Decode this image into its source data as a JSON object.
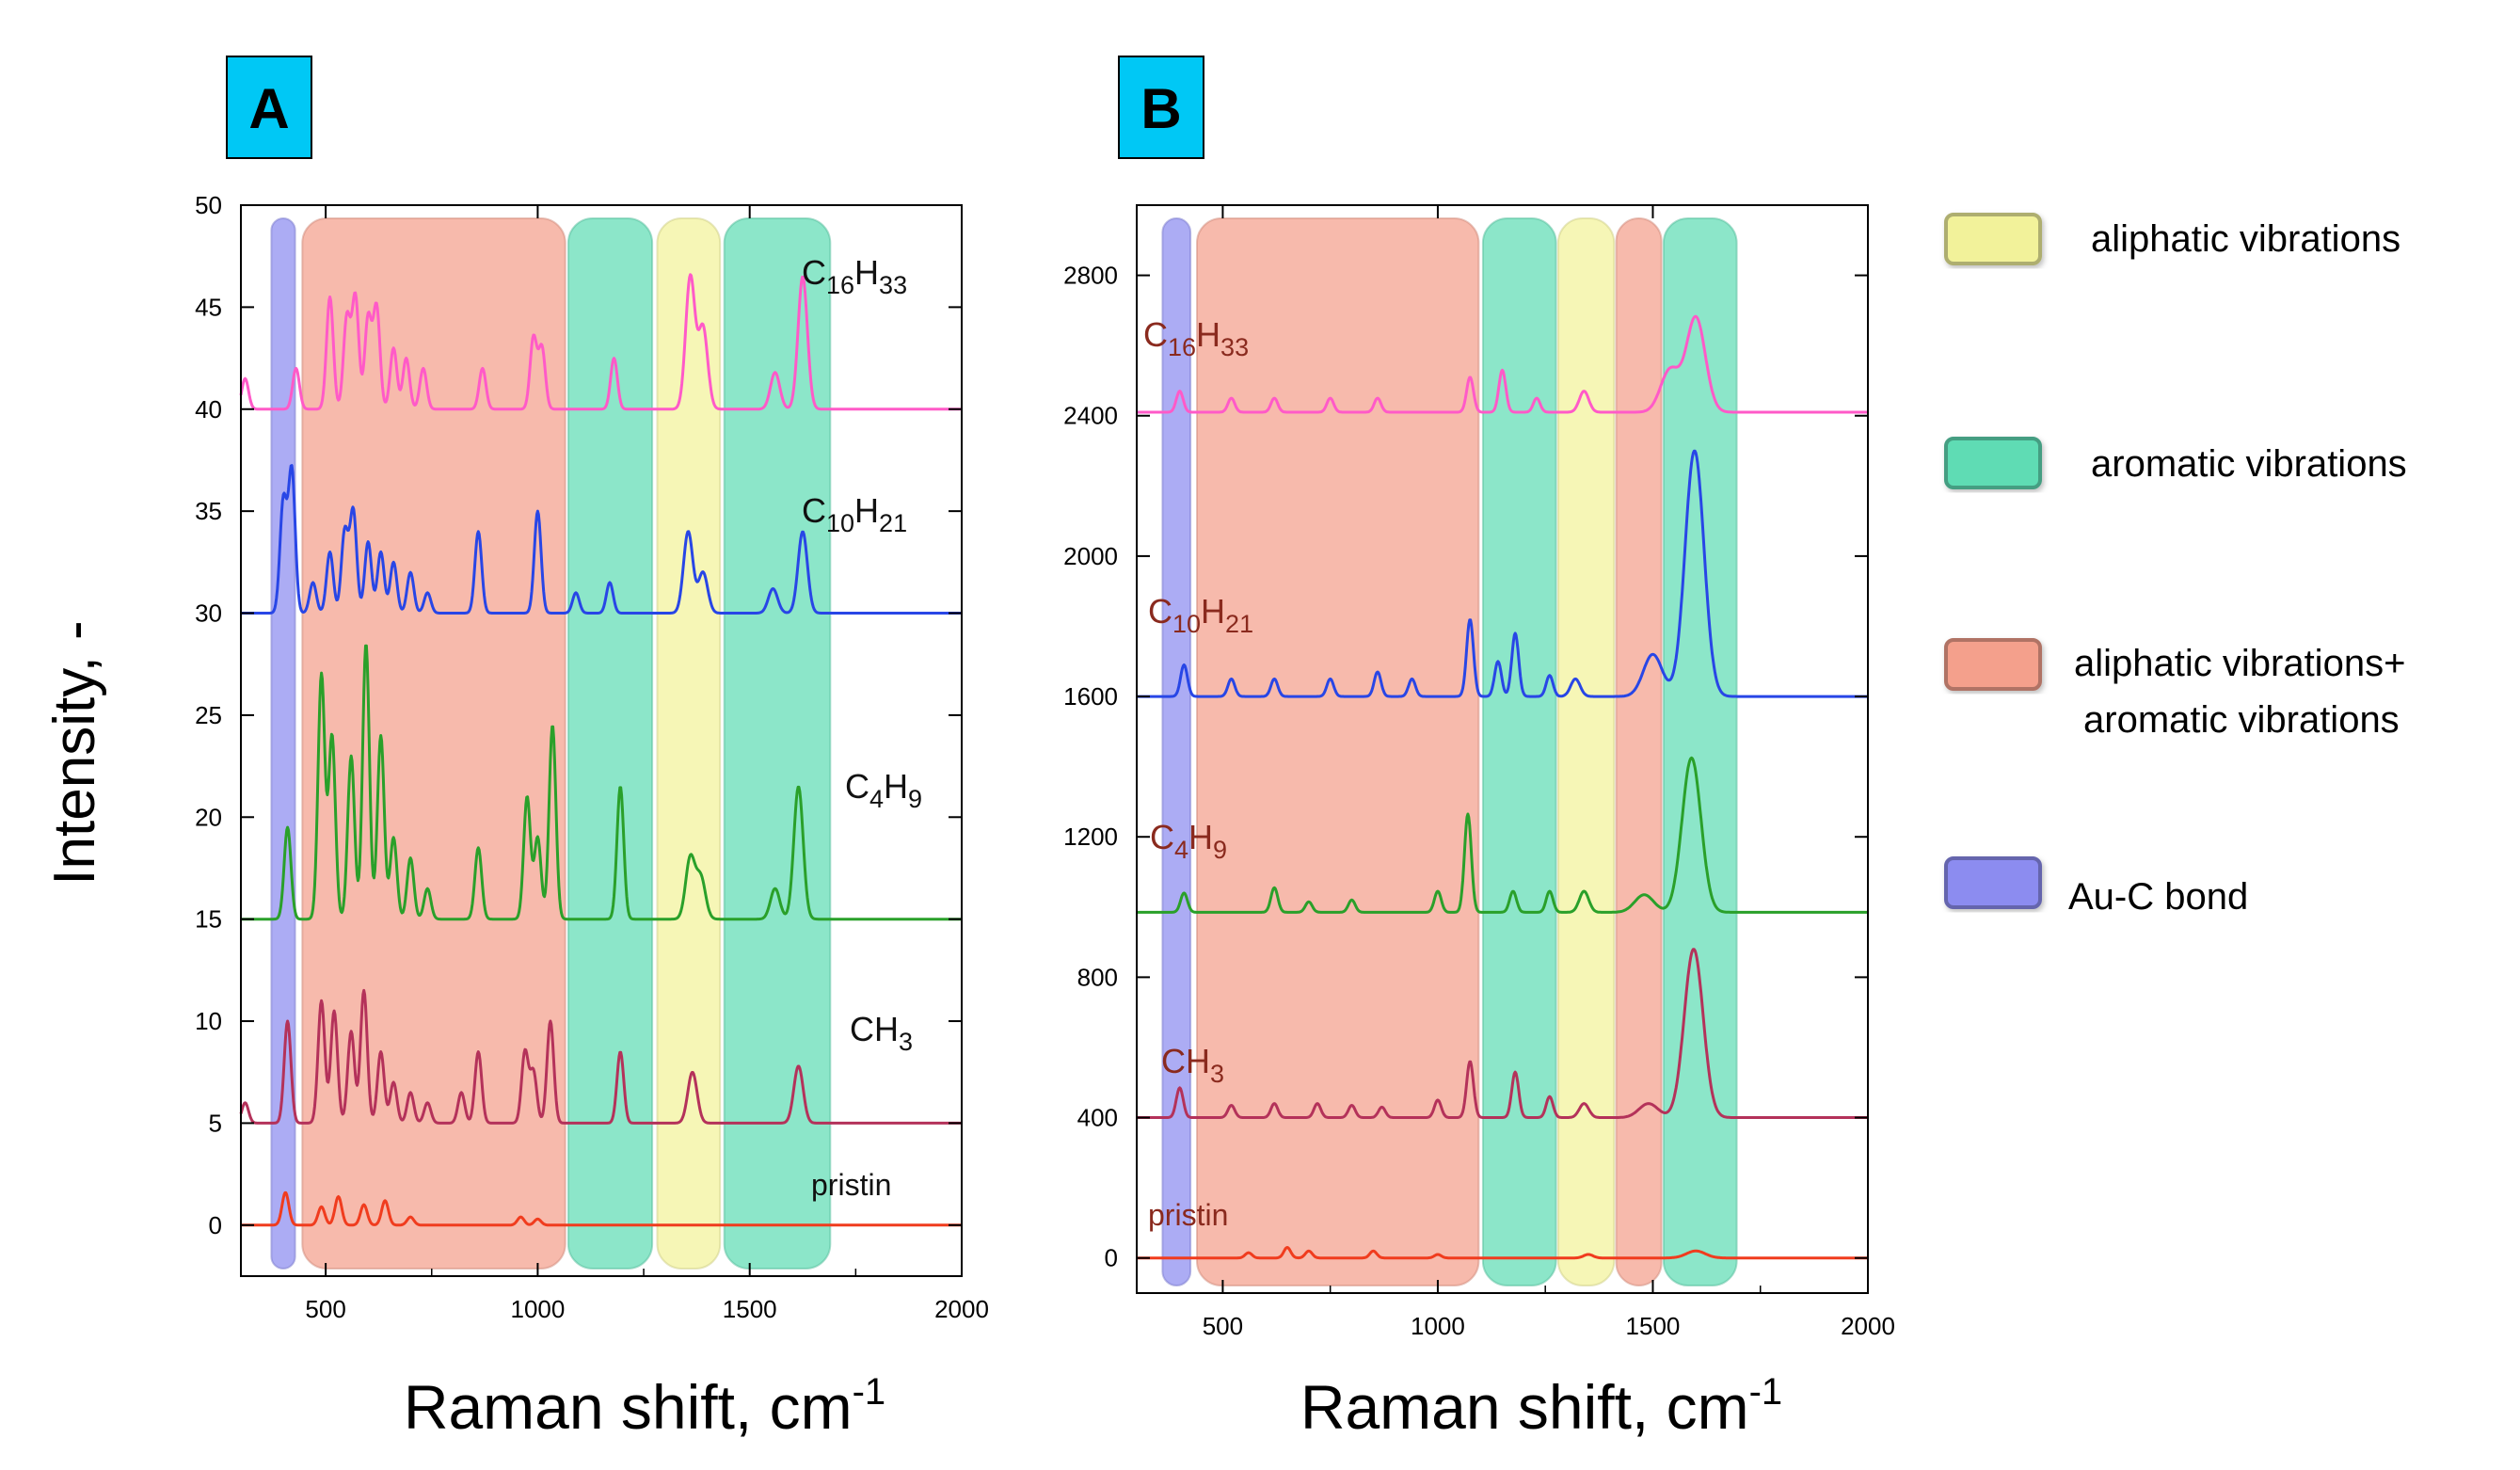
{
  "panel_labels": {
    "a": "A",
    "b": "B"
  },
  "colors": {
    "panel_label_fill": "#00c8f5",
    "band_au_c": "#8c8cf0",
    "band_mixed": "#f4a08c",
    "band_aromatic": "#5fdcb4",
    "band_aliphatic": "#f2f29a",
    "series": {
      "pristin": "#f03c1e",
      "CH3": "#b4325a",
      "C4H9": "#2aa02a",
      "C10H21": "#2846e6",
      "C16H33": "#ff5ac8"
    }
  },
  "axis_titles": {
    "y": "Intensity, -",
    "x": {
      "base": "Raman shift, cm",
      "sup": "-1"
    }
  },
  "legend": [
    {
      "id": "aliphatic",
      "color_key": "band_aliphatic",
      "lines": [
        "aliphatic vibrations"
      ]
    },
    {
      "id": "aromatic",
      "color_key": "band_aromatic",
      "lines": [
        "aromatic vibrations"
      ]
    },
    {
      "id": "mixed",
      "color_key": "band_mixed",
      "lines": [
        "aliphatic vibrations+",
        "aromatic vibrations"
      ]
    },
    {
      "id": "au_c",
      "color_key": "band_au_c",
      "lines": [
        "Au-C bond"
      ]
    }
  ],
  "series_labels": {
    "pristin": {
      "main": "pristin"
    },
    "CH3": {
      "main": "CH",
      "sub": "3"
    },
    "C4H9": {
      "main": "C",
      "sub": "4",
      "main2": "H",
      "sub2": "9"
    },
    "C10H21": {
      "main": "C",
      "sub": "10",
      "main2": "H",
      "sub2": "21"
    },
    "C16H33": {
      "main": "C",
      "sub": "16",
      "main2": "H",
      "sub2": "33"
    }
  },
  "chart_data": [
    {
      "panel": "A",
      "type": "line",
      "title": "",
      "xlabel": "Raman shift, cm-1",
      "ylabel": "Intensity, -",
      "xlim": [
        300,
        2000
      ],
      "ylim": [
        -2.5,
        50
      ],
      "xticks": [
        500,
        1000,
        1500,
        2000
      ],
      "yticks": [
        0,
        5,
        10,
        15,
        20,
        25,
        30,
        35,
        40,
        45,
        50
      ],
      "bands": [
        {
          "kind": "au_c",
          "x": [
            372,
            428
          ]
        },
        {
          "kind": "mixed",
          "x": [
            445,
            1065
          ]
        },
        {
          "kind": "aromatic",
          "x": [
            1072,
            1270
          ]
        },
        {
          "kind": "aliphatic",
          "x": [
            1282,
            1430
          ]
        },
        {
          "kind": "aromatic",
          "x": [
            1440,
            1690
          ]
        }
      ],
      "series": [
        {
          "key": "pristin",
          "baseline": 0,
          "peaks": [
            [
              405,
              1.6
            ],
            [
              490,
              0.9
            ],
            [
              530,
              1.4
            ],
            [
              590,
              1.0
            ],
            [
              640,
              1.2
            ],
            [
              700,
              0.4
            ],
            [
              960,
              0.4
            ],
            [
              1000,
              0.3
            ]
          ]
        },
        {
          "key": "CH3",
          "baseline": 5,
          "peaks": [
            [
              310,
              1.0
            ],
            [
              410,
              5.0
            ],
            [
              490,
              6.0
            ],
            [
              520,
              5.5
            ],
            [
              560,
              4.5
            ],
            [
              590,
              6.5
            ],
            [
              630,
              3.5
            ],
            [
              660,
              2.0
            ],
            [
              700,
              1.5
            ],
            [
              740,
              1.0
            ],
            [
              820,
              1.5
            ],
            [
              860,
              3.5
            ],
            [
              970,
              3.5
            ],
            [
              990,
              2.5
            ],
            [
              1030,
              5.0
            ],
            [
              1195,
              3.5
            ],
            [
              1365,
              2.5
            ],
            [
              1615,
              2.8
            ]
          ]
        },
        {
          "key": "C4H9",
          "baseline": 15,
          "peaks": [
            [
              410,
              4.5
            ],
            [
              490,
              12.0
            ],
            [
              515,
              9.0
            ],
            [
              560,
              8.0
            ],
            [
              595,
              13.5
            ],
            [
              630,
              9.0
            ],
            [
              660,
              4.0
            ],
            [
              700,
              3.0
            ],
            [
              740,
              1.5
            ],
            [
              860,
              3.5
            ],
            [
              975,
              6.0
            ],
            [
              1000,
              4.0
            ],
            [
              1035,
              9.5
            ],
            [
              1195,
              6.5
            ],
            [
              1360,
              3.0
            ],
            [
              1385,
              2.0
            ],
            [
              1560,
              1.5
            ],
            [
              1615,
              6.5
            ]
          ]
        },
        {
          "key": "C10H21",
          "baseline": 30,
          "peaks": [
            [
              400,
              5.5
            ],
            [
              420,
              7.0
            ],
            [
              470,
              1.5
            ],
            [
              510,
              3.0
            ],
            [
              545,
              4.0
            ],
            [
              565,
              5.0
            ],
            [
              600,
              3.5
            ],
            [
              630,
              3.0
            ],
            [
              660,
              2.5
            ],
            [
              700,
              2.0
            ],
            [
              740,
              1.0
            ],
            [
              860,
              4.0
            ],
            [
              1000,
              5.0
            ],
            [
              1090,
              1.0
            ],
            [
              1170,
              1.5
            ],
            [
              1355,
              4.0
            ],
            [
              1390,
              2.0
            ],
            [
              1555,
              1.2
            ],
            [
              1625,
              4.0
            ]
          ]
        },
        {
          "key": "C16H33",
          "baseline": 40,
          "peaks": [
            [
              310,
              1.5
            ],
            [
              430,
              2.0
            ],
            [
              510,
              5.5
            ],
            [
              550,
              4.5
            ],
            [
              570,
              5.5
            ],
            [
              600,
              4.5
            ],
            [
              620,
              5.0
            ],
            [
              660,
              3.0
            ],
            [
              690,
              2.5
            ],
            [
              730,
              2.0
            ],
            [
              870,
              2.0
            ],
            [
              990,
              3.5
            ],
            [
              1010,
              3.0
            ],
            [
              1180,
              2.5
            ],
            [
              1360,
              6.5
            ],
            [
              1390,
              4.0
            ],
            [
              1560,
              1.8
            ],
            [
              1625,
              6.5
            ]
          ]
        }
      ]
    },
    {
      "panel": "B",
      "type": "line",
      "title": "",
      "xlabel": "Raman shift, cm-1",
      "ylabel": "",
      "xlim": [
        300,
        2000
      ],
      "ylim": [
        -100,
        3000
      ],
      "xticks": [
        500,
        1000,
        1500,
        2000
      ],
      "yticks": [
        0,
        400,
        800,
        1200,
        1600,
        2000,
        2400,
        2800
      ],
      "bands": [
        {
          "kind": "au_c",
          "x": [
            360,
            425
          ]
        },
        {
          "kind": "mixed",
          "x": [
            440,
            1095
          ]
        },
        {
          "kind": "aromatic",
          "x": [
            1105,
            1275
          ]
        },
        {
          "kind": "aliphatic",
          "x": [
            1280,
            1410
          ]
        },
        {
          "kind": "mixed",
          "x": [
            1415,
            1520
          ]
        },
        {
          "kind": "aromatic",
          "x": [
            1525,
            1695
          ]
        }
      ],
      "series": [
        {
          "key": "pristin",
          "baseline": 0,
          "peaks": [
            [
              560,
              15
            ],
            [
              650,
              30
            ],
            [
              700,
              20
            ],
            [
              850,
              20
            ],
            [
              1000,
              10
            ],
            [
              1350,
              10
            ],
            [
              1600,
              20
            ]
          ]
        },
        {
          "key": "CH3",
          "baseline": 400,
          "peaks": [
            [
              400,
              85
            ],
            [
              520,
              35
            ],
            [
              620,
              40
            ],
            [
              720,
              40
            ],
            [
              800,
              35
            ],
            [
              870,
              30
            ],
            [
              1000,
              50
            ],
            [
              1075,
              160
            ],
            [
              1180,
              130
            ],
            [
              1260,
              60
            ],
            [
              1340,
              40
            ],
            [
              1490,
              40
            ],
            [
              1595,
              480
            ]
          ]
        },
        {
          "key": "C4H9",
          "baseline": 985,
          "peaks": [
            [
              410,
              55
            ],
            [
              620,
              70
            ],
            [
              700,
              30
            ],
            [
              800,
              35
            ],
            [
              1000,
              60
            ],
            [
              1070,
              280
            ],
            [
              1175,
              60
            ],
            [
              1260,
              60
            ],
            [
              1340,
              60
            ],
            [
              1480,
              50
            ],
            [
              1590,
              440
            ]
          ]
        },
        {
          "key": "C10H21",
          "baseline": 1600,
          "peaks": [
            [
              410,
              90
            ],
            [
              520,
              50
            ],
            [
              620,
              50
            ],
            [
              750,
              50
            ],
            [
              860,
              70
            ],
            [
              940,
              50
            ],
            [
              1075,
              220
            ],
            [
              1140,
              100
            ],
            [
              1180,
              180
            ],
            [
              1260,
              60
            ],
            [
              1320,
              50
            ],
            [
              1500,
              120
            ],
            [
              1597,
              700
            ]
          ]
        },
        {
          "key": "C16H33",
          "baseline": 2410,
          "peaks": [
            [
              400,
              60
            ],
            [
              520,
              40
            ],
            [
              620,
              40
            ],
            [
              750,
              40
            ],
            [
              860,
              40
            ],
            [
              1075,
              100
            ],
            [
              1150,
              120
            ],
            [
              1230,
              40
            ],
            [
              1340,
              60
            ],
            [
              1540,
              120
            ],
            [
              1600,
              270
            ]
          ]
        }
      ]
    }
  ]
}
